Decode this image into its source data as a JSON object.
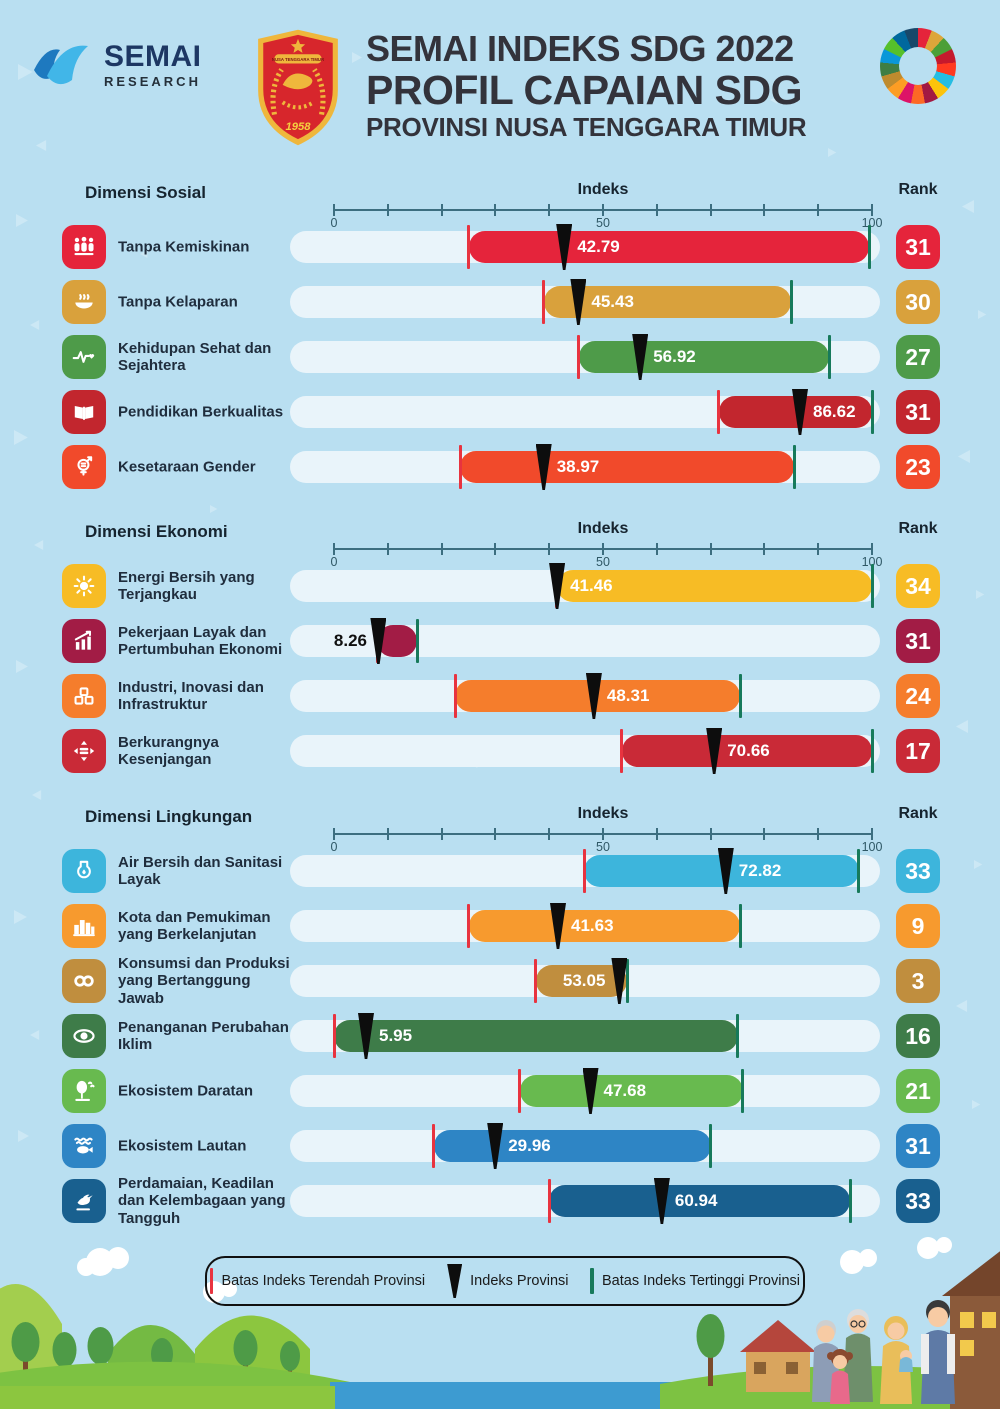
{
  "header": {
    "brand": {
      "name": "SEMAI",
      "subtitle": "RESEARCH"
    },
    "title_line1": "SEMAI INDEKS SDG 2022",
    "title_line2": "PROFIL CAPAIAN SDG",
    "title_line3": "PROVINSI NUSA TENGGARA TIMUR",
    "emblem": {
      "region": "NUSA TENGGARA TIMUR",
      "year": "1958"
    },
    "sdg_wheel_colors": [
      "#E5243B",
      "#DDA63A",
      "#4C9F38",
      "#C5192D",
      "#FF3A21",
      "#26BDE2",
      "#FCC30B",
      "#A21942",
      "#FD6925",
      "#DD1367",
      "#FD9D24",
      "#BF8B2E",
      "#3F7E44",
      "#0A97D9",
      "#56C02B",
      "#00689D",
      "#19486A"
    ]
  },
  "colors": {
    "background": "#B9DFF1",
    "track": "#E9F4FA",
    "min_line": "#E8333F",
    "max_line": "#177A5B",
    "marker": "#0D0D0D",
    "axis": "#3C6E80"
  },
  "chart_data": {
    "type": "bar",
    "axis": {
      "title": "Indeks",
      "min": 0,
      "max": 100,
      "tick_step": 10,
      "tick_labels": [
        "0",
        "50",
        "100"
      ]
    },
    "rank_header": "Rank",
    "sections": [
      {
        "title": "Dimensi Sosial",
        "rows": [
          {
            "label": "Tanpa Kemiskinan",
            "icon": "sdg1-people-icon",
            "color": "#E5243B",
            "min": 25.0,
            "max": 99.5,
            "value": 42.79,
            "rank": 31
          },
          {
            "label": "Tanpa Kelaparan",
            "icon": "sdg2-bowl-icon",
            "color": "#D9A13C",
            "min": 39.0,
            "max": 85.0,
            "value": 45.43,
            "rank": 30
          },
          {
            "label": "Kehidupan Sehat dan Sejahtera",
            "icon": "sdg3-health-icon",
            "color": "#4E9B49",
            "min": 45.5,
            "max": 92.0,
            "value": 56.92,
            "rank": 27
          },
          {
            "label": "Pendidikan Berkualitas",
            "icon": "sdg4-book-icon",
            "color": "#C2262E",
            "min": 71.5,
            "max": 100,
            "value": 86.62,
            "rank": 31
          },
          {
            "label": "Kesetaraan Gender",
            "icon": "sdg5-gender-icon",
            "color": "#F14A2B",
            "min": 23.5,
            "max": 85.5,
            "value": 38.97,
            "rank": 23
          }
        ]
      },
      {
        "title": "Dimensi Ekonomi",
        "rows": [
          {
            "label": "Energi Bersih yang Terjangkau",
            "icon": "sdg7-sun-icon",
            "color": "#F7BC25",
            "min": 41.4,
            "max": 100,
            "value": 41.46,
            "rank": 34
          },
          {
            "label": "Pekerjaan Layak dan Pertumbuhan Ekonomi",
            "icon": "sdg8-growth-icon",
            "color": "#A21C45",
            "min": 8.0,
            "max": 15.5,
            "value": 8.26,
            "rank": 31,
            "value_placement": "outside-left"
          },
          {
            "label": "Industri, Inovasi dan Infrastruktur",
            "icon": "sdg9-industry-icon",
            "color": "#F57D2C",
            "min": 22.5,
            "max": 75.5,
            "value": 48.31,
            "rank": 24
          },
          {
            "label": "Berkurangnya Kesenjangan",
            "icon": "sdg10-equality-icon",
            "color": "#C92A37",
            "min": 53.5,
            "max": 100,
            "value": 70.66,
            "rank": 17
          }
        ]
      },
      {
        "title": "Dimensi Lingkungan",
        "rows": [
          {
            "label": "Air Bersih dan Sanitasi Layak",
            "icon": "sdg6-water-icon",
            "color": "#3DB5DC",
            "min": 46.5,
            "max": 97.5,
            "value": 72.82,
            "rank": 33
          },
          {
            "label": "Kota dan Pemukiman yang Berkelanjutan",
            "icon": "sdg11-city-icon",
            "color": "#F79A2E",
            "min": 25.0,
            "max": 75.5,
            "value": 41.63,
            "rank": 9
          },
          {
            "label": "Konsumsi dan Produksi yang Bertanggung Jawab",
            "icon": "sdg12-infinity-icon",
            "color": "#C08E3E",
            "min": 37.5,
            "max": 54.5,
            "value": 53.05,
            "rank": 3,
            "value_placement": "inside-left"
          },
          {
            "label": "Penanganan Perubahan Iklim",
            "icon": "sdg13-climate-icon",
            "color": "#3E7C49",
            "min": 0,
            "max": 75.0,
            "value": 5.95,
            "rank": 16
          },
          {
            "label": "Ekosistem Daratan",
            "icon": "sdg15-land-icon",
            "color": "#68BA4F",
            "min": 34.5,
            "max": 76.0,
            "value": 47.68,
            "rank": 21
          },
          {
            "label": "Ekosistem Lautan",
            "icon": "sdg14-ocean-icon",
            "color": "#2E85C5",
            "min": 18.5,
            "max": 70.0,
            "value": 29.96,
            "rank": 31
          },
          {
            "label": "Perdamaian, Keadilan dan Kelembagaan yang Tangguh",
            "icon": "sdg16-peace-icon",
            "color": "#19608F",
            "min": 40.0,
            "max": 96.0,
            "value": 60.94,
            "rank": 33
          }
        ]
      }
    ]
  },
  "legend": {
    "items": [
      {
        "marker": "red-line",
        "label": "Batas Indeks Terendah Provinsi"
      },
      {
        "marker": "black-triangle",
        "label": "Indeks Provinsi"
      },
      {
        "marker": "green-line",
        "label": "Batas Indeks Tertinggi Provinsi"
      }
    ]
  }
}
